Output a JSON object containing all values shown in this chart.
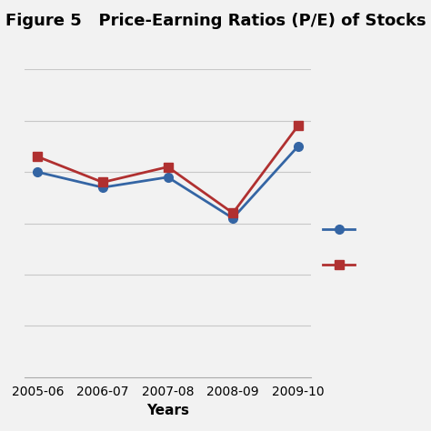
{
  "title": "Figure 5   Price-Earning Ratios (P/E) of Stocks",
  "xlabel": "Years",
  "categories": [
    "2005-06",
    "2006-07",
    "2007-08",
    "2008-09",
    "2009-10"
  ],
  "blue_values": [
    20.0,
    18.5,
    19.5,
    15.5,
    22.5
  ],
  "red_values": [
    21.5,
    19.0,
    20.5,
    16.0,
    24.5
  ],
  "blue_color": "#3465A4",
  "red_color": "#B03030",
  "background_color": "#F2F2F2",
  "grid_color": "#C8C8C8",
  "ylim": [
    0,
    30
  ],
  "yticks": [
    5,
    10,
    15,
    20,
    25,
    30
  ],
  "title_fontsize": 13,
  "axis_label_fontsize": 11,
  "legend_labels": [
    "",
    ""
  ]
}
